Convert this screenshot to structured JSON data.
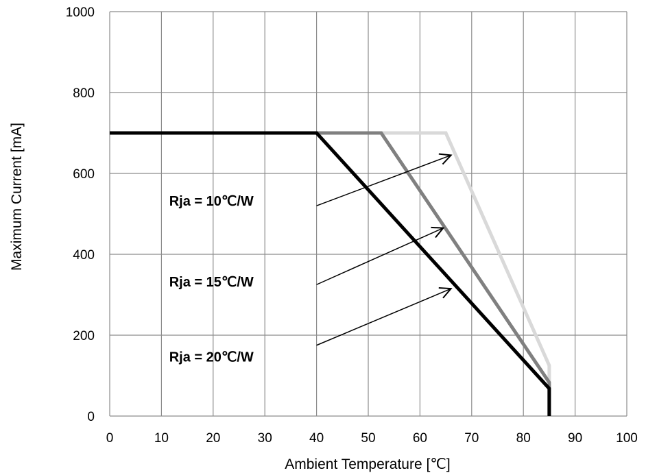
{
  "chart_data": {
    "type": "line",
    "xlabel": "Ambient Temperature [℃]",
    "ylabel": "Maximum Current [mA]",
    "xlim": [
      0,
      100
    ],
    "ylim": [
      0,
      1000
    ],
    "x_ticks": [
      "0",
      "10",
      "20",
      "30",
      "40",
      "50",
      "60",
      "70",
      "80",
      "90",
      "100"
    ],
    "y_ticks": [
      "0",
      "200",
      "400",
      "600",
      "800",
      "1000"
    ],
    "grid": true,
    "series": [
      {
        "name": "Rja = 10℃/W",
        "color": "#d9d9d9",
        "points": [
          [
            0,
            700
          ],
          [
            65,
            700
          ],
          [
            85,
            125
          ],
          [
            85,
            0
          ]
        ]
      },
      {
        "name": "Rja = 15℃/W",
        "color": "#808080",
        "points": [
          [
            0,
            700
          ],
          [
            52.5,
            700
          ],
          [
            85,
            83
          ],
          [
            85,
            0
          ]
        ]
      },
      {
        "name": "Rja = 20℃/W",
        "color": "#000000",
        "points": [
          [
            0,
            700
          ],
          [
            40,
            700
          ],
          [
            85,
            68
          ],
          [
            85,
            0
          ]
        ]
      }
    ],
    "annotations": [
      {
        "text": "Rja = 10℃/W",
        "label_x": 11.5,
        "label_y": 520,
        "arrow_from": [
          40,
          520
        ],
        "arrow_to": [
          66,
          645
        ]
      },
      {
        "text": "Rja = 15℃/W",
        "label_x": 11.5,
        "label_y": 320,
        "arrow_from": [
          40,
          325
        ],
        "arrow_to": [
          64.5,
          465
        ]
      },
      {
        "text": "Rja = 20℃/W",
        "label_x": 11.5,
        "label_y": 135,
        "arrow_from": [
          40,
          175
        ],
        "arrow_to": [
          66,
          315
        ]
      }
    ]
  }
}
